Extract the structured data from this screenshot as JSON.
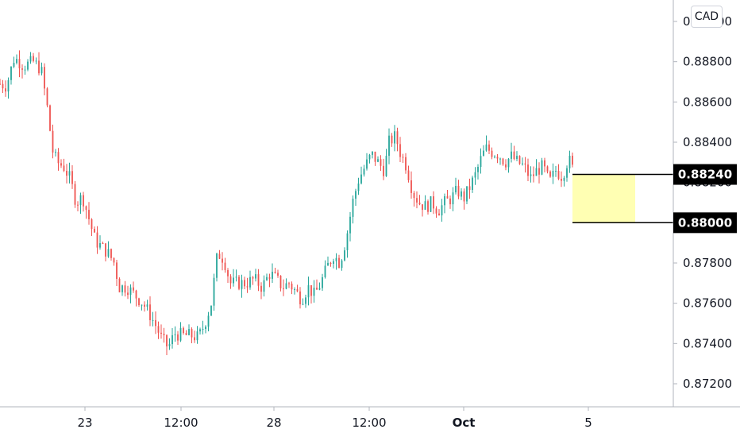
{
  "currency": "CAD",
  "chart_data": {
    "type": "candlestick",
    "y_axis": {
      "ticks": [
        "0.89000",
        "0.88800",
        "0.88600",
        "0.88400",
        "0.88200",
        "0.87800",
        "0.87600",
        "0.87400",
        "0.87200"
      ],
      "range": [
        0.871,
        0.8902
      ]
    },
    "x_axis": {
      "ticks": [
        {
          "label": "23",
          "bold": false
        },
        {
          "label": "12:00",
          "bold": false
        },
        {
          "label": "28",
          "bold": false
        },
        {
          "label": "12:00",
          "bold": false
        },
        {
          "label": "Oct",
          "bold": true
        },
        {
          "label": "5",
          "bold": false
        }
      ]
    },
    "price_labels": [
      "0.88240",
      "0.88000"
    ],
    "zone": {
      "top": 0.8824,
      "bottom": 0.88
    },
    "colors": {
      "up": "#26a69a",
      "down": "#ef5350",
      "line": "#000000",
      "zone": "#ffffb3",
      "axis": "#b2b5be"
    },
    "path": [
      [
        0,
        0.8869
      ],
      [
        8,
        0.8868
      ],
      [
        18,
        0.8882
      ],
      [
        30,
        0.8878
      ],
      [
        42,
        0.888
      ],
      [
        52,
        0.8876
      ],
      [
        60,
        0.8856
      ],
      [
        66,
        0.8836
      ],
      [
        72,
        0.883
      ],
      [
        80,
        0.8828
      ],
      [
        88,
        0.8822
      ],
      [
        96,
        0.881
      ],
      [
        104,
        0.8813
      ],
      [
        112,
        0.8802
      ],
      [
        120,
        0.8791
      ],
      [
        128,
        0.8788
      ],
      [
        136,
        0.8785
      ],
      [
        144,
        0.878
      ],
      [
        150,
        0.8768
      ],
      [
        160,
        0.8768
      ],
      [
        170,
        0.8764
      ],
      [
        180,
        0.876
      ],
      [
        188,
        0.8755
      ],
      [
        196,
        0.8749
      ],
      [
        204,
        0.8742
      ],
      [
        212,
        0.8738
      ],
      [
        220,
        0.8745
      ],
      [
        230,
        0.8744
      ],
      [
        240,
        0.8744
      ],
      [
        250,
        0.8743
      ],
      [
        258,
        0.875
      ],
      [
        266,
        0.876
      ],
      [
        274,
        0.8785
      ],
      [
        282,
        0.8782
      ],
      [
        290,
        0.877
      ],
      [
        300,
        0.877
      ],
      [
        310,
        0.877
      ],
      [
        320,
        0.8772
      ],
      [
        330,
        0.8768
      ],
      [
        340,
        0.8775
      ],
      [
        348,
        0.8772
      ],
      [
        356,
        0.8768
      ],
      [
        364,
        0.877
      ],
      [
        372,
        0.8766
      ],
      [
        380,
        0.8762
      ],
      [
        388,
        0.8768
      ],
      [
        396,
        0.8764
      ],
      [
        404,
        0.877
      ],
      [
        412,
        0.8778
      ],
      [
        420,
        0.8784
      ],
      [
        428,
        0.878
      ],
      [
        436,
        0.8792
      ],
      [
        444,
        0.881
      ],
      [
        452,
        0.8822
      ],
      [
        460,
        0.8828
      ],
      [
        468,
        0.8834
      ],
      [
        476,
        0.883
      ],
      [
        484,
        0.8826
      ],
      [
        490,
        0.884
      ],
      [
        498,
        0.8843
      ],
      [
        504,
        0.8835
      ],
      [
        512,
        0.8828
      ],
      [
        520,
        0.8815
      ],
      [
        528,
        0.881
      ],
      [
        536,
        0.8808
      ],
      [
        544,
        0.881
      ],
      [
        552,
        0.8806
      ],
      [
        560,
        0.881
      ],
      [
        568,
        0.8812
      ],
      [
        576,
        0.8816
      ],
      [
        584,
        0.8812
      ],
      [
        592,
        0.8818
      ],
      [
        600,
        0.8825
      ],
      [
        606,
        0.8832
      ],
      [
        612,
        0.8837
      ],
      [
        620,
        0.8835
      ],
      [
        628,
        0.8834
      ],
      [
        636,
        0.883
      ],
      [
        644,
        0.8833
      ],
      [
        652,
        0.883
      ],
      [
        660,
        0.8828
      ],
      [
        668,
        0.8822
      ],
      [
        676,
        0.8826
      ],
      [
        684,
        0.8828
      ],
      [
        692,
        0.882
      ],
      [
        700,
        0.8826
      ],
      [
        708,
        0.8823
      ],
      [
        716,
        0.8832
      ],
      [
        722,
        0.8826
      ]
    ]
  }
}
